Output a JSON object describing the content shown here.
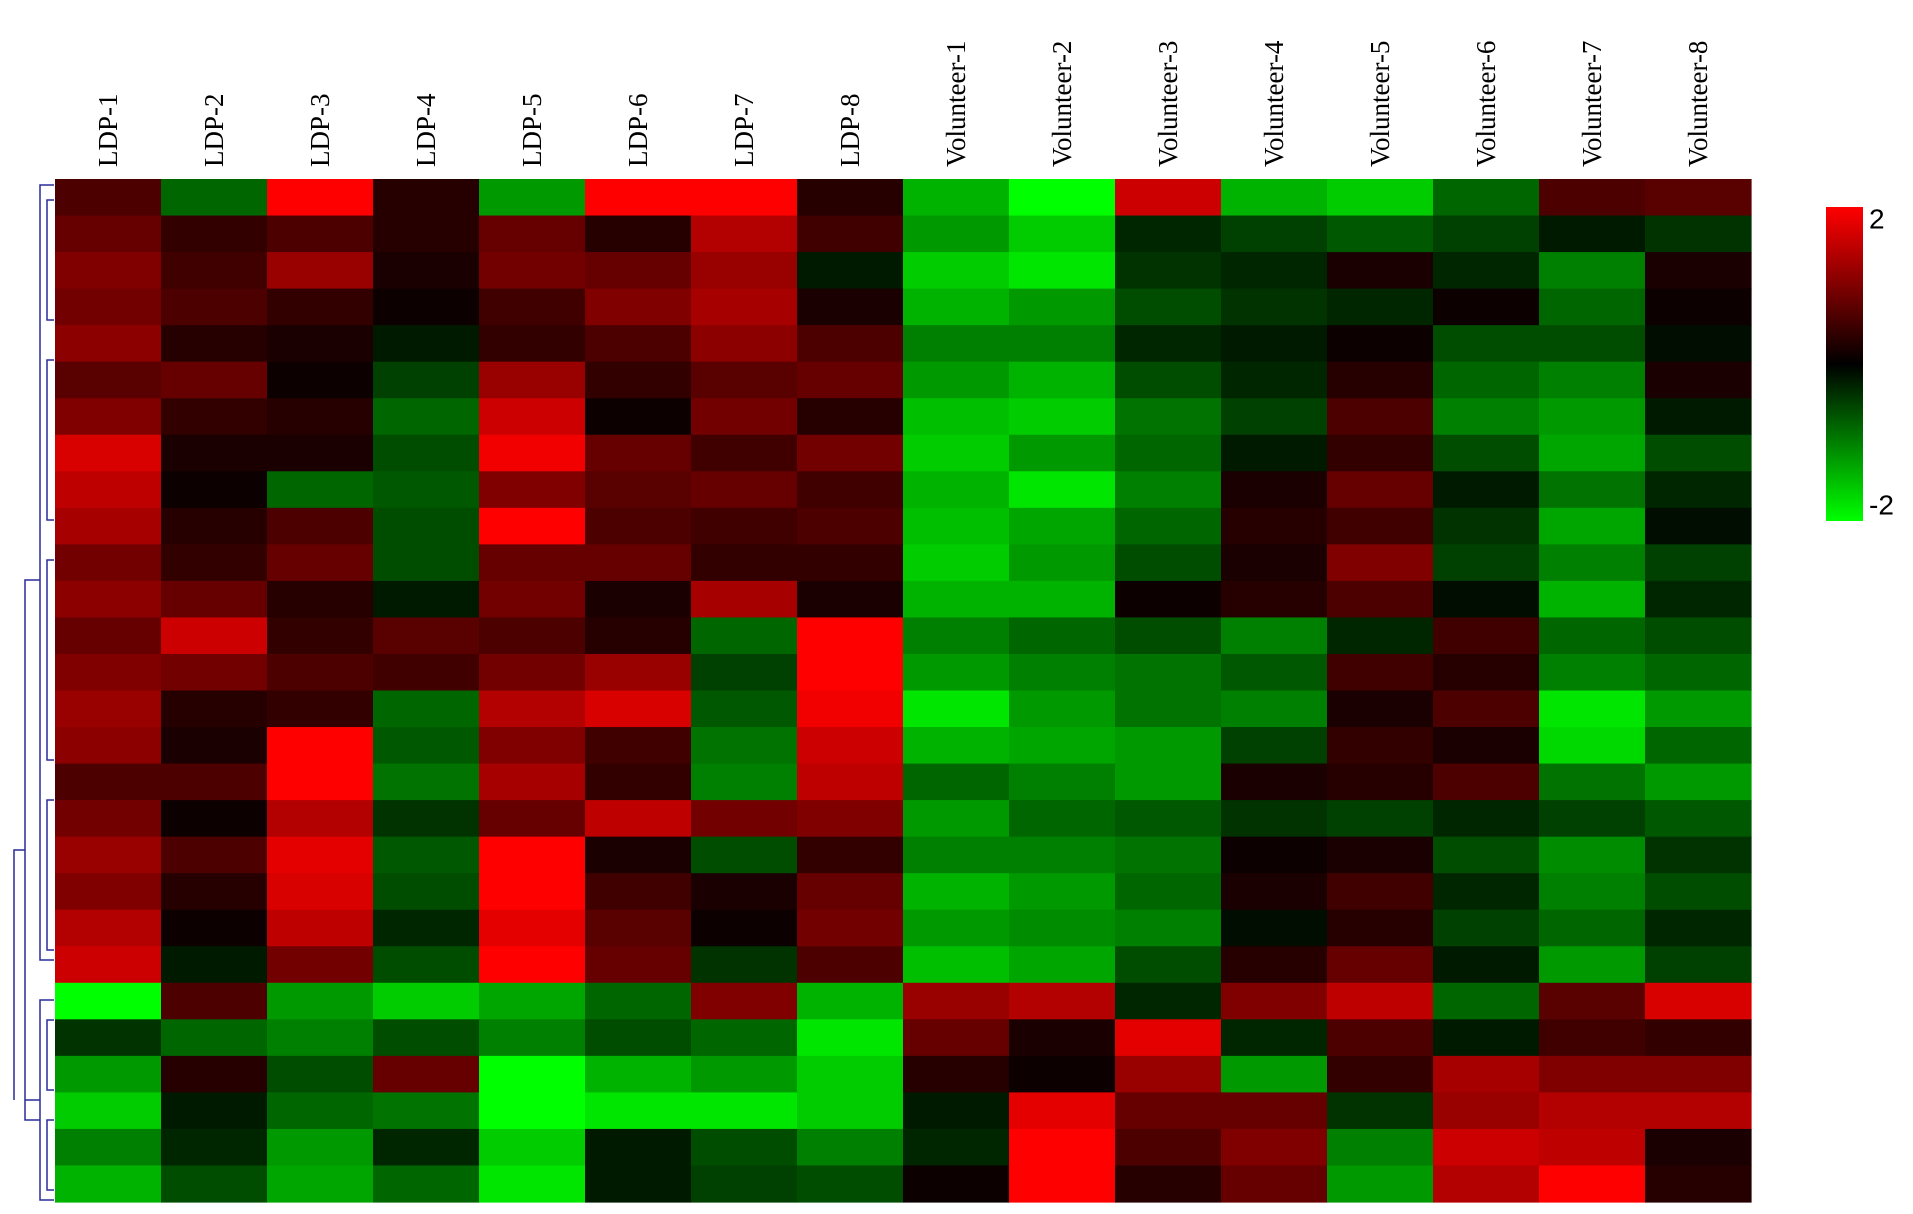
{
  "chart_data": {
    "type": "heatmap",
    "x": [
      "LDP-1",
      "LDP-2",
      "LDP-3",
      "LDP-4",
      "LDP-5",
      "LDP-6",
      "LDP-7",
      "LDP-8",
      "Volunteer-1",
      "Volunteer-2",
      "Volunteer-3",
      "Volunteer-4",
      "Volunteer-5",
      "Volunteer-6",
      "Volunteer-7",
      "Volunteer-8"
    ],
    "z": [
      [
        0.6,
        -0.8,
        2,
        0.3,
        -1.2,
        2,
        2,
        0.3,
        -1.4,
        -2,
        1.6,
        -1.4,
        -1.6,
        -0.8,
        0.6,
        0.7
      ],
      [
        0.8,
        0.4,
        0.6,
        0.3,
        0.8,
        0.3,
        1.4,
        0.5,
        -1.2,
        -1.6,
        -0.3,
        -0.5,
        -0.7,
        -0.5,
        -0.2,
        -0.4
      ],
      [
        1.0,
        0.5,
        1.2,
        0.2,
        0.9,
        0.8,
        1.2,
        -0.2,
        -1.6,
        -1.8,
        -0.4,
        -0.3,
        0.2,
        -0.3,
        -1.0,
        0.2
      ],
      [
        0.9,
        0.6,
        0.4,
        0.1,
        0.5,
        1.0,
        1.3,
        0.2,
        -1.4,
        -1.2,
        -0.6,
        -0.4,
        -0.3,
        0.1,
        -0.8,
        0.1
      ],
      [
        1.1,
        0.3,
        0.2,
        -0.2,
        0.4,
        0.6,
        1.1,
        0.6,
        -1.0,
        -1.0,
        -0.3,
        -0.2,
        0.1,
        -0.6,
        -0.6,
        -0.1
      ],
      [
        0.7,
        0.8,
        0.1,
        -0.5,
        1.2,
        0.4,
        0.7,
        0.8,
        -1.2,
        -1.4,
        -0.6,
        -0.3,
        0.3,
        -0.8,
        -1.0,
        0.2
      ],
      [
        1.0,
        0.4,
        0.3,
        -0.8,
        1.6,
        0.1,
        0.9,
        0.3,
        -1.5,
        -1.6,
        -0.9,
        -0.5,
        0.6,
        -1.0,
        -1.2,
        -0.2
      ],
      [
        1.7,
        0.2,
        0.2,
        -0.6,
        1.9,
        0.8,
        0.5,
        0.9,
        -1.6,
        -1.2,
        -0.8,
        -0.2,
        0.4,
        -0.6,
        -1.3,
        -0.6
      ],
      [
        1.5,
        0.1,
        -0.8,
        -0.7,
        1.0,
        0.7,
        0.8,
        0.5,
        -1.4,
        -1.8,
        -1.0,
        0.2,
        0.8,
        -0.2,
        -0.9,
        -0.3
      ],
      [
        1.3,
        0.3,
        0.6,
        -0.6,
        2,
        0.6,
        0.5,
        0.6,
        -1.5,
        -1.3,
        -0.8,
        0.3,
        0.5,
        -0.4,
        -1.3,
        -0.1
      ],
      [
        0.9,
        0.4,
        0.8,
        -0.6,
        0.8,
        0.8,
        0.4,
        0.4,
        -1.6,
        -1.2,
        -0.6,
        0.2,
        1.0,
        -0.5,
        -1.0,
        -0.5
      ],
      [
        1.1,
        0.8,
        0.3,
        -0.2,
        0.9,
        0.2,
        1.3,
        0.2,
        -1.4,
        -1.4,
        0.1,
        0.3,
        0.6,
        -0.1,
        -1.4,
        -0.3
      ],
      [
        0.8,
        1.6,
        0.4,
        0.7,
        0.6,
        0.3,
        -0.8,
        2,
        -1.0,
        -0.8,
        -0.6,
        -1.0,
        -0.3,
        0.5,
        -0.8,
        -0.6
      ],
      [
        1.0,
        0.9,
        0.6,
        0.5,
        0.9,
        1.2,
        -0.5,
        2,
        -1.2,
        -1.0,
        -0.9,
        -0.7,
        0.5,
        0.3,
        -1.0,
        -0.8
      ],
      [
        1.2,
        0.3,
        0.4,
        -0.8,
        1.4,
        1.7,
        -0.7,
        1.9,
        -1.8,
        -1.2,
        -0.9,
        -1.0,
        0.2,
        0.6,
        -1.8,
        -1.2
      ],
      [
        1.1,
        0.2,
        2,
        -0.7,
        1.0,
        0.5,
        -0.9,
        1.6,
        -1.4,
        -1.3,
        -1.2,
        -0.5,
        0.4,
        0.2,
        -1.7,
        -0.8
      ],
      [
        0.6,
        0.6,
        2,
        -0.9,
        1.3,
        0.4,
        -1.0,
        1.5,
        -0.8,
        -1.0,
        -1.2,
        0.2,
        0.3,
        0.6,
        -0.9,
        -1.2
      ],
      [
        0.9,
        0.1,
        1.4,
        -0.4,
        0.8,
        1.5,
        0.9,
        1.0,
        -1.2,
        -0.8,
        -0.7,
        -0.4,
        -0.5,
        -0.3,
        -0.5,
        -0.7
      ],
      [
        1.2,
        0.6,
        1.8,
        -0.7,
        2,
        0.2,
        -0.6,
        0.4,
        -1.0,
        -1.0,
        -0.9,
        0.1,
        0.2,
        -0.6,
        -1.1,
        -0.4
      ],
      [
        1.0,
        0.3,
        1.7,
        -0.6,
        2,
        0.5,
        0.2,
        0.8,
        -1.4,
        -1.2,
        -0.8,
        0.2,
        0.5,
        -0.3,
        -1.0,
        -0.6
      ],
      [
        1.4,
        0.1,
        1.5,
        -0.3,
        1.8,
        0.7,
        0.1,
        0.9,
        -1.2,
        -1.1,
        -1.0,
        -0.1,
        0.3,
        -0.5,
        -0.8,
        -0.3
      ],
      [
        1.6,
        -0.2,
        0.9,
        -0.6,
        2,
        0.8,
        -0.4,
        0.6,
        -1.5,
        -1.3,
        -0.6,
        0.3,
        0.8,
        -0.2,
        -1.2,
        -0.5
      ],
      [
        -2,
        0.6,
        -1.2,
        -1.6,
        -1.3,
        -0.8,
        1.0,
        -1.4,
        1.2,
        1.4,
        -0.3,
        1.0,
        1.5,
        -0.8,
        0.7,
        1.7
      ],
      [
        -0.4,
        -0.8,
        -1.0,
        -0.6,
        -1.0,
        -0.6,
        -0.8,
        -1.8,
        0.8,
        0.2,
        1.8,
        -0.3,
        0.6,
        -0.2,
        0.5,
        0.4
      ],
      [
        -1.2,
        0.3,
        -0.6,
        0.8,
        -2,
        -1.4,
        -1.2,
        -1.6,
        0.3,
        0.1,
        1.2,
        -1.2,
        0.4,
        1.3,
        1.0,
        1.0
      ],
      [
        -1.6,
        -0.2,
        -0.8,
        -0.9,
        -2,
        -1.8,
        -1.8,
        -1.6,
        -0.2,
        1.8,
        0.8,
        0.8,
        -0.4,
        1.2,
        1.4,
        1.4
      ],
      [
        -1.0,
        -0.3,
        -1.2,
        -0.3,
        -1.6,
        -0.2,
        -0.6,
        -1.0,
        -0.3,
        2,
        0.6,
        1.0,
        -1.0,
        1.6,
        1.5,
        0.2
      ],
      [
        -1.4,
        -0.6,
        -1.3,
        -0.8,
        -1.8,
        -0.2,
        -0.5,
        -0.6,
        0.1,
        2,
        0.3,
        0.8,
        -1.2,
        1.4,
        2,
        0.3
      ]
    ],
    "zlim": [
      -2,
      2
    ],
    "colorscale": [
      "#00ff00",
      "#000000",
      "#ff0000"
    ],
    "colorbar_ticks": [
      2,
      -2
    ]
  }
}
